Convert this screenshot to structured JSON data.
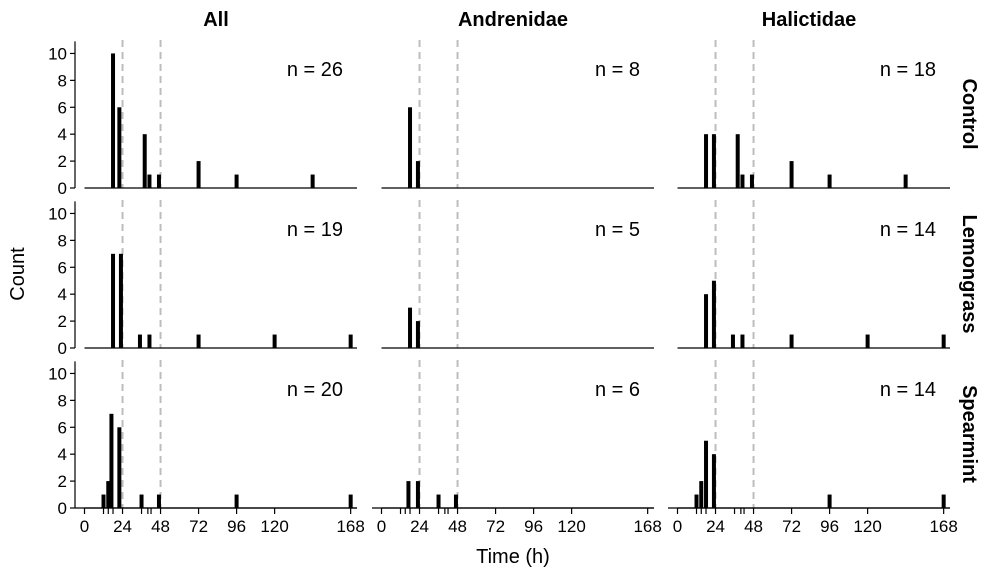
{
  "chart_data": {
    "type": "bar",
    "title": "",
    "xlabel": "Time (h)",
    "ylabel": "Count",
    "xlim": [
      -6,
      172
    ],
    "ylim": [
      0,
      11
    ],
    "x_ticks": [
      0,
      24,
      48,
      72,
      96,
      120,
      168
    ],
    "y_ticks": [
      0,
      2,
      4,
      6,
      8,
      10
    ],
    "reference_lines_x": [
      24,
      48
    ],
    "grid": false,
    "columns": [
      "All",
      "Andrenidae",
      "Halictidae"
    ],
    "rows": [
      "Control",
      "Lemongrass",
      "Spearmint"
    ],
    "panels": [
      {
        "column": "All",
        "row": "Control",
        "n_label": "n = 26",
        "bars": [
          {
            "x": 18,
            "y": 10
          },
          {
            "x": 22,
            "y": 6
          },
          {
            "x": 38,
            "y": 4
          },
          {
            "x": 41,
            "y": 1
          },
          {
            "x": 47,
            "y": 1
          },
          {
            "x": 72,
            "y": 2
          },
          {
            "x": 96,
            "y": 1
          },
          {
            "x": 144,
            "y": 1
          }
        ]
      },
      {
        "column": "Andrenidae",
        "row": "Control",
        "n_label": "n = 8",
        "bars": [
          {
            "x": 18,
            "y": 6
          },
          {
            "x": 23,
            "y": 2
          }
        ]
      },
      {
        "column": "Halictidae",
        "row": "Control",
        "n_label": "n = 18",
        "bars": [
          {
            "x": 18,
            "y": 4
          },
          {
            "x": 23,
            "y": 4
          },
          {
            "x": 38,
            "y": 4
          },
          {
            "x": 41,
            "y": 1
          },
          {
            "x": 47,
            "y": 1
          },
          {
            "x": 72,
            "y": 2
          },
          {
            "x": 96,
            "y": 1
          },
          {
            "x": 144,
            "y": 1
          }
        ]
      },
      {
        "column": "All",
        "row": "Lemongrass",
        "n_label": "n = 19",
        "bars": [
          {
            "x": 18,
            "y": 7
          },
          {
            "x": 23,
            "y": 7
          },
          {
            "x": 35,
            "y": 1
          },
          {
            "x": 41,
            "y": 1
          },
          {
            "x": 72,
            "y": 1
          },
          {
            "x": 120,
            "y": 1
          },
          {
            "x": 168,
            "y": 1
          }
        ]
      },
      {
        "column": "Andrenidae",
        "row": "Lemongrass",
        "n_label": "n = 5",
        "bars": [
          {
            "x": 18,
            "y": 3
          },
          {
            "x": 23,
            "y": 2
          }
        ]
      },
      {
        "column": "Halictidae",
        "row": "Lemongrass",
        "n_label": "n = 14",
        "bars": [
          {
            "x": 18,
            "y": 4
          },
          {
            "x": 23,
            "y": 5
          },
          {
            "x": 35,
            "y": 1
          },
          {
            "x": 41,
            "y": 1
          },
          {
            "x": 72,
            "y": 1
          },
          {
            "x": 120,
            "y": 1
          },
          {
            "x": 168,
            "y": 1
          }
        ]
      },
      {
        "column": "All",
        "row": "Spearmint",
        "n_label": "n = 20",
        "bars": [
          {
            "x": 12,
            "y": 1
          },
          {
            "x": 15,
            "y": 2
          },
          {
            "x": 17,
            "y": 7
          },
          {
            "x": 22,
            "y": 6
          },
          {
            "x": 36,
            "y": 1
          },
          {
            "x": 47,
            "y": 1
          },
          {
            "x": 96,
            "y": 1
          },
          {
            "x": 168,
            "y": 1
          }
        ]
      },
      {
        "column": "Andrenidae",
        "row": "Spearmint",
        "n_label": "n = 6",
        "bars": [
          {
            "x": 17,
            "y": 2
          },
          {
            "x": 23,
            "y": 2
          },
          {
            "x": 36,
            "y": 1
          },
          {
            "x": 47,
            "y": 1
          }
        ]
      },
      {
        "column": "Halictidae",
        "row": "Spearmint",
        "n_label": "n = 14",
        "bars": [
          {
            "x": 12,
            "y": 1
          },
          {
            "x": 15,
            "y": 2
          },
          {
            "x": 18,
            "y": 5
          },
          {
            "x": 23,
            "y": 4
          },
          {
            "x": 96,
            "y": 1
          },
          {
            "x": 168,
            "y": 1
          }
        ]
      }
    ],
    "minor_ticks_x": [
      12,
      15,
      18,
      36,
      40,
      42
    ]
  }
}
